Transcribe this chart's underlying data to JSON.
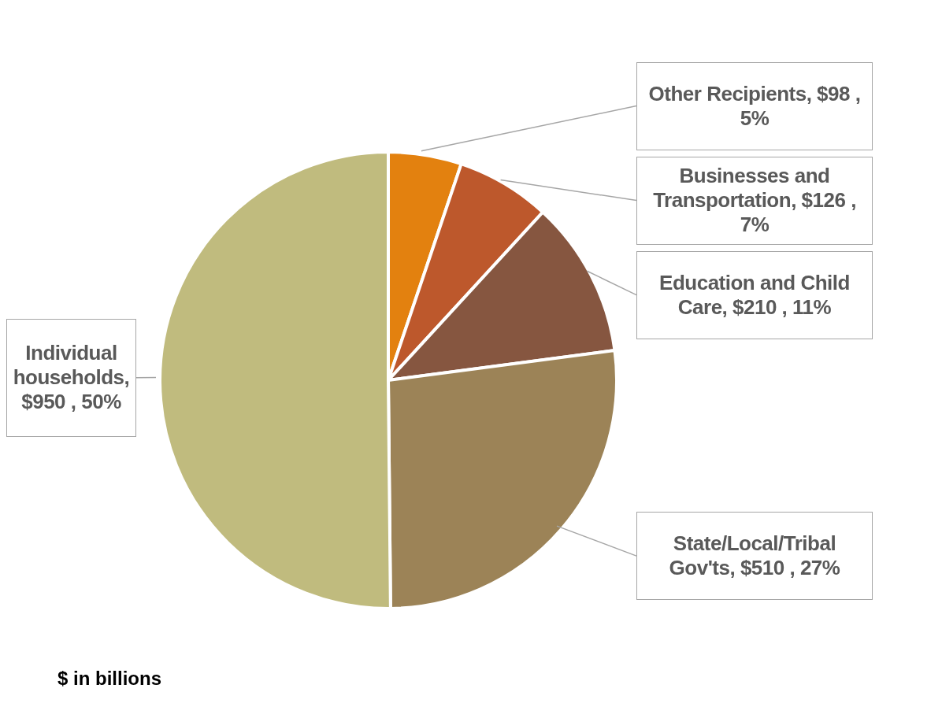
{
  "chart_data": {
    "type": "pie",
    "categories": [
      "Other Recipients",
      "Businesses and Transportation",
      "Education and Child Care",
      "State/Local/Tribal Gov'ts",
      "Individual households"
    ],
    "values": [
      98,
      126,
      210,
      510,
      950
    ],
    "colors": [
      "#e3810f",
      "#bd582c",
      "#865640",
      "#9c8357",
      "#c0bb7e"
    ],
    "value_labels": [
      ", $98 , 5%",
      ", $126 , 7%",
      ", $210 , 11%",
      ", $510 , 27%",
      ", $950 , 50%"
    ],
    "annotations": [
      "$ in billions"
    ]
  }
}
